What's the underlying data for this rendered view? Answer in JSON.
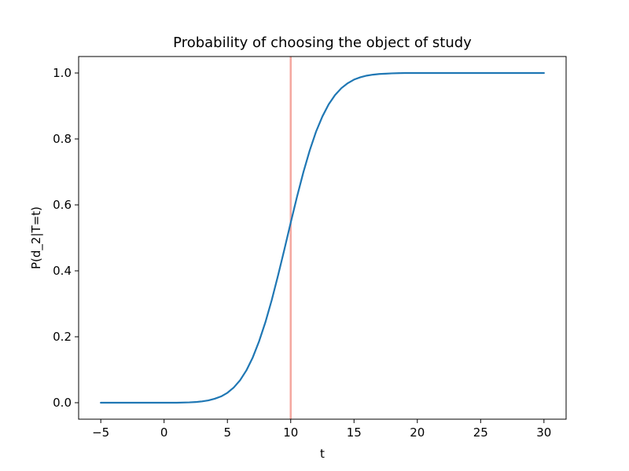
{
  "chart_data": {
    "type": "line",
    "title": "Probability of choosing the object of study",
    "xlabel": "t",
    "ylabel": "P(d_2|T=t)",
    "xlim": [
      -6.75,
      31.75
    ],
    "ylim": [
      -0.05,
      1.05
    ],
    "xticks": [
      -5,
      0,
      5,
      10,
      15,
      20,
      25,
      30
    ],
    "xtick_labels": [
      "−5",
      "0",
      "5",
      "10",
      "15",
      "20",
      "25",
      "30"
    ],
    "yticks": [
      0.0,
      0.2,
      0.4,
      0.6,
      0.8,
      1.0
    ],
    "ytick_labels": [
      "0.0",
      "0.2",
      "0.4",
      "0.6",
      "0.8",
      "1.0"
    ],
    "grid": false,
    "vertical_line": {
      "x": 10,
      "color": "#f4a8a0"
    },
    "series": [
      {
        "color": "#1f77b4",
        "x": [
          -5,
          -4,
          -3,
          -2,
          -1,
          0,
          1,
          2,
          2.5,
          3,
          3.5,
          4,
          4.5,
          5,
          5.5,
          6,
          6.5,
          7,
          7.5,
          8,
          8.5,
          9,
          9.5,
          10,
          10.5,
          11,
          11.5,
          12,
          12.5,
          13,
          13.5,
          14,
          14.5,
          15,
          15.5,
          16,
          16.5,
          17,
          17.5,
          18,
          19,
          20,
          21,
          22,
          23,
          25,
          27,
          30
        ],
        "y": [
          0.0,
          0.0,
          0.0,
          0.0,
          0.0,
          0.0,
          0.0,
          0.001,
          0.002,
          0.004,
          0.007,
          0.012,
          0.019,
          0.03,
          0.046,
          0.068,
          0.098,
          0.137,
          0.186,
          0.244,
          0.311,
          0.386,
          0.465,
          0.546,
          0.625,
          0.699,
          0.765,
          0.822,
          0.868,
          0.905,
          0.933,
          0.954,
          0.969,
          0.98,
          0.987,
          0.992,
          0.995,
          0.997,
          0.998,
          0.999,
          1.0,
          1.0,
          1.0,
          1.0,
          1.0,
          1.0,
          1.0,
          1.0
        ]
      }
    ]
  }
}
